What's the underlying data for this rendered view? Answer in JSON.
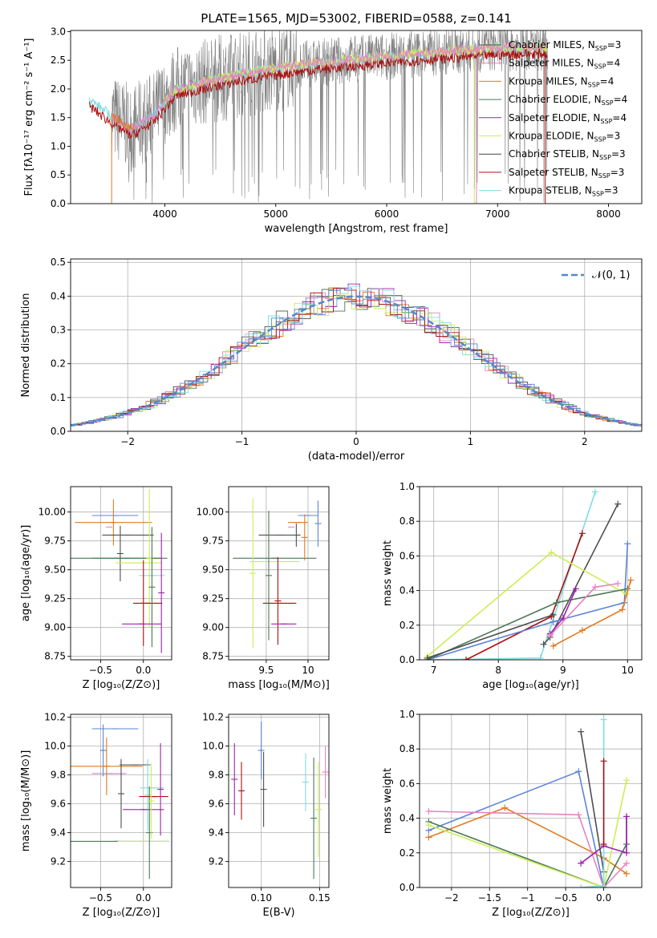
{
  "figure": {
    "title": "PLATE=1565, MJD=53002, FIBERID=0588, z=0.141"
  },
  "colors": {
    "miles_chabrier": "#4f4f4f",
    "miles_salpeter": "#e882c0",
    "miles_kroupa": "#e07b20",
    "elodie_chabrier": "#4a7a55",
    "elodie_salpeter": "#a020b0",
    "elodie_kroupa": "#ccee55",
    "stelib_chabrier": "#444444",
    "stelib_salpeter": "#aa1111",
    "stelib_kroupa": "#7fdde0",
    "blue_model": "#5b85d8",
    "data_gray": "#808080",
    "gauss": "#5588cc"
  },
  "chart_data": [
    {
      "id": "spectrum",
      "type": "line",
      "xlabel": "wavelength [Angstrom, rest frame]",
      "ylabel": "Flux [fλ10⁻¹⁷ erg cm⁻² s⁻¹ A⁻¹]",
      "xlim": [
        3150,
        8300
      ],
      "ylim": [
        0,
        3.02
      ],
      "xticks": [
        4000,
        5000,
        6000,
        7000,
        8000
      ],
      "yticks": [
        0.0,
        0.5,
        1.0,
        1.5,
        2.0,
        2.5,
        3.0
      ],
      "grid": false,
      "legend_position": "right",
      "legend": [
        {
          "label": "Chabrier MILES, N",
          "sub": "SSP",
          "tail": "=3",
          "color": "miles_chabrier"
        },
        {
          "label": "Salpeter MILES, N",
          "sub": "SSP",
          "tail": "=4",
          "color": "miles_salpeter"
        },
        {
          "label": "Kroupa MILES, N",
          "sub": "SSP",
          "tail": "=4",
          "color": "miles_kroupa"
        },
        {
          "label": "Chabrier ELODIE, N",
          "sub": "SSP",
          "tail": "=4",
          "color": "elodie_chabrier"
        },
        {
          "label": "Salpeter ELODIE, N",
          "sub": "SSP",
          "tail": "=4",
          "color": "elodie_salpeter"
        },
        {
          "label": "Kroupa ELODIE, N",
          "sub": "SSP",
          "tail": "=3",
          "color": "elodie_kroupa"
        },
        {
          "label": "Chabrier STELIB, N",
          "sub": "SSP",
          "tail": "=3",
          "color": "stelib_chabrier"
        },
        {
          "label": "Salpeter STELIB, N",
          "sub": "SSP",
          "tail": "=3",
          "color": "stelib_salpeter"
        },
        {
          "label": "Kroupa STELIB, N",
          "sub": "SSP",
          "tail": "=3",
          "color": "stelib_kroupa"
        }
      ],
      "continuum": {
        "x": [
          3300,
          3500,
          3700,
          3900,
          4100,
          4400,
          4800,
          5200,
          5600,
          6000,
          6500,
          7000,
          7500,
          8000
        ],
        "y": [
          1.85,
          1.55,
          1.3,
          1.55,
          2.0,
          2.15,
          2.3,
          2.42,
          2.5,
          2.57,
          2.65,
          2.72,
          2.74,
          2.68
        ]
      },
      "models": [
        {
          "color": "stelib_kroupa",
          "x_range": [
            3320,
            7450
          ]
        },
        {
          "color": "stelib_salpeter",
          "x_range": [
            3320,
            7450
          ]
        },
        {
          "color": "elodie_kroupa",
          "x_range": [
            4000,
            7450
          ]
        },
        {
          "color": "miles_salpeter",
          "x_range": [
            3520,
            7450
          ]
        },
        {
          "color": "miles_kroupa",
          "x_range": [
            3520,
            3720
          ]
        }
      ],
      "data_series": {
        "color": "data_gray",
        "x_range": [
          3520,
          7450
        ],
        "scatter": 0.35
      }
    },
    {
      "id": "residuals",
      "type": "line",
      "xlabel": "(data-model)/error",
      "ylabel": "Normed distribution",
      "xlim": [
        -2.5,
        2.5
      ],
      "ylim": [
        0,
        0.51
      ],
      "xticks": [
        -2,
        -1,
        0,
        1,
        2
      ],
      "yticks": [
        0.0,
        0.1,
        0.2,
        0.3,
        0.4,
        0.5
      ],
      "grid": true,
      "legend_position": "top-right",
      "gaussian_label": "𝒩(0, 1)",
      "bin_width": 0.1,
      "histograms": [
        {
          "color": "miles_chabrier"
        },
        {
          "color": "miles_salpeter"
        },
        {
          "color": "miles_kroupa"
        },
        {
          "color": "elodie_chabrier"
        },
        {
          "color": "elodie_salpeter"
        },
        {
          "color": "elodie_kroupa"
        },
        {
          "color": "stelib_salpeter"
        },
        {
          "color": "stelib_kroupa"
        },
        {
          "color": "blue_model"
        }
      ]
    },
    {
      "id": "age_vs_z",
      "type": "scatter",
      "xlabel": "Z [log₁₀(Z/Z⊙)]",
      "ylabel": "age  [log₁₀(age/yr)]",
      "xlim": [
        -0.85,
        0.33
      ],
      "ylim": [
        8.72,
        10.22
      ],
      "xticks": [
        -0.5,
        0.0
      ],
      "yticks": [
        8.75,
        9.0,
        9.25,
        9.5,
        9.75,
        10.0
      ],
      "grid": true,
      "points": [
        {
          "x": -0.33,
          "y": 9.97,
          "xerr": 0.27,
          "yerr": 0.0,
          "color": "blue_model"
        },
        {
          "x": -0.35,
          "y": 9.91,
          "xerr": 0.45,
          "yerr": 0.2,
          "color": "miles_kroupa"
        },
        {
          "x": -0.4,
          "y": 9.87,
          "xerr": 0.0,
          "yerr": 0.0,
          "color": "miles_salpeter"
        },
        {
          "x": -0.18,
          "y": 9.8,
          "xerr": 0.3,
          "yerr": 0.0,
          "color": "miles_chabrier"
        },
        {
          "x": -0.3,
          "y": 9.6,
          "xerr": 0.58,
          "yerr": 0.0,
          "color": "elodie_chabrier"
        },
        {
          "x": -0.27,
          "y": 9.64,
          "xerr": 0.0,
          "yerr": 0.24,
          "color": "miles_chabrier"
        },
        {
          "x": -0.2,
          "y": 9.6,
          "xerr": 0.4,
          "yerr": 0.0,
          "color": "elodie_chabrier"
        },
        {
          "x": -0.05,
          "y": 9.56,
          "xerr": 0.27,
          "yerr": 0.0,
          "color": "elodie_kroupa"
        },
        {
          "x": 0.07,
          "y": 9.6,
          "xerr": 0.0,
          "yerr": 0.6,
          "color": "elodie_kroupa"
        },
        {
          "x": 0.1,
          "y": 9.45,
          "xerr": 0.15,
          "yerr": 0.0,
          "color": "stelib_kroupa"
        },
        {
          "x": 0.05,
          "y": 9.21,
          "xerr": 0.17,
          "yerr": 0.0,
          "color": "stelib_salpeter"
        },
        {
          "x": 0.0,
          "y": 9.21,
          "xerr": 0.0,
          "yerr": 0.37,
          "color": "stelib_salpeter"
        },
        {
          "x": -0.02,
          "y": 9.03,
          "xerr": 0.23,
          "yerr": 0.0,
          "color": "elodie_salpeter"
        },
        {
          "x": 0.21,
          "y": 9.3,
          "xerr": 0.0,
          "yerr": 0.52,
          "color": "elodie_salpeter"
        },
        {
          "x": 0.1,
          "y": 9.35,
          "xerr": 0.0,
          "yerr": 0.52,
          "color": "elodie_chabrier"
        }
      ]
    },
    {
      "id": "age_vs_mass",
      "type": "scatter",
      "xlabel": "mass [log₁₀(M/M⊙)]",
      "ylabel": "",
      "xlim": [
        9.05,
        10.25
      ],
      "ylim": [
        8.72,
        10.22
      ],
      "xticks": [
        9.5,
        10.0
      ],
      "yticks": [
        8.75,
        9.0,
        9.25,
        9.5,
        9.75,
        10.0
      ],
      "grid": true,
      "points": [
        {
          "x": 10.0,
          "y": 9.97,
          "xerr": 0.12,
          "yerr": 0.0,
          "color": "blue_model"
        },
        {
          "x": 10.12,
          "y": 9.9,
          "xerr": 0.0,
          "yerr": 0.2,
          "color": "blue_model"
        },
        {
          "x": 9.88,
          "y": 9.91,
          "xerr": 0.12,
          "yerr": 0.0,
          "color": "miles_kroupa"
        },
        {
          "x": 9.8,
          "y": 9.87,
          "xerr": 0.0,
          "yerr": 0.0,
          "color": "miles_salpeter"
        },
        {
          "x": 9.66,
          "y": 9.8,
          "xerr": 0.25,
          "yerr": 0.0,
          "color": "miles_chabrier"
        },
        {
          "x": 9.86,
          "y": 9.8,
          "xerr": 0.0,
          "yerr": 0.1,
          "color": "miles_chabrier"
        },
        {
          "x": 9.6,
          "y": 9.6,
          "xerr": 0.5,
          "yerr": 0.0,
          "color": "elodie_chabrier"
        },
        {
          "x": 9.6,
          "y": 9.57,
          "xerr": 0.3,
          "yerr": 0.0,
          "color": "elodie_kroupa"
        },
        {
          "x": 9.34,
          "y": 9.47,
          "xerr": 0.0,
          "yerr": 0.65,
          "color": "elodie_kroupa"
        },
        {
          "x": 9.53,
          "y": 9.45,
          "xerr": 0.0,
          "yerr": 0.56,
          "color": "elodie_chabrier"
        },
        {
          "x": 9.66,
          "y": 9.21,
          "xerr": 0.2,
          "yerr": 0.0,
          "color": "stelib_salpeter"
        },
        {
          "x": 9.64,
          "y": 9.23,
          "xerr": 0.0,
          "yerr": 0.38,
          "color": "stelib_salpeter"
        },
        {
          "x": 9.71,
          "y": 9.03,
          "xerr": 0.15,
          "yerr": 0.0,
          "color": "elodie_salpeter"
        },
        {
          "x": 9.96,
          "y": 9.78,
          "xerr": 0.0,
          "yerr": 0.2,
          "color": "miles_kroupa"
        }
      ]
    },
    {
      "id": "weight_vs_age",
      "type": "line",
      "xlabel": "age  [log₁₀(age/yr)]",
      "ylabel": "mass weight",
      "xlim": [
        6.78,
        10.22
      ],
      "ylim": [
        0,
        1.0
      ],
      "xticks": [
        7,
        8,
        9,
        10
      ],
      "yticks": [
        0.0,
        0.2,
        0.4,
        0.6,
        0.8,
        1.0
      ],
      "grid": true,
      "series": [
        {
          "color": "stelib_kroupa",
          "x": [
            6.9,
            8.65,
            9.5
          ],
          "y": [
            0.0,
            0.01,
            0.97
          ]
        },
        {
          "color": "stelib_salpeter",
          "x": [
            7.5,
            8.82,
            9.3
          ],
          "y": [
            0.0,
            0.25,
            0.73
          ]
        },
        {
          "color": "miles_chabrier",
          "x": [
            8.7,
            8.8,
            9.85
          ],
          "y": [
            0.09,
            0.13,
            0.9
          ]
        },
        {
          "color": "blue_model",
          "x": [
            6.9,
            8.85,
            9.95,
            10.0
          ],
          "y": [
            0.0,
            0.22,
            0.33,
            0.67
          ]
        },
        {
          "color": "elodie_kroupa",
          "x": [
            6.9,
            8.82,
            9.98
          ],
          "y": [
            0.02,
            0.62,
            0.38
          ]
        },
        {
          "color": "elodie_chabrier",
          "x": [
            6.9,
            8.9,
            10.0
          ],
          "y": [
            0.0,
            0.33,
            0.41
          ]
        },
        {
          "color": "elodie_salpeter",
          "x": [
            8.8,
            9.0,
            9.2
          ],
          "y": [
            0.15,
            0.24,
            0.41
          ]
        },
        {
          "color": "miles_salpeter",
          "x": [
            8.8,
            9.5,
            9.85
          ],
          "y": [
            0.14,
            0.42,
            0.44
          ]
        },
        {
          "color": "miles_kroupa",
          "x": [
            8.85,
            9.3,
            9.92,
            10.05
          ],
          "y": [
            0.08,
            0.17,
            0.29,
            0.46
          ]
        },
        {
          "color": "miles_chabrier",
          "x": [
            6.9,
            8.85
          ],
          "y": [
            0.01,
            0.26
          ]
        }
      ]
    },
    {
      "id": "mass_vs_z",
      "type": "scatter",
      "xlabel": "Z [log₁₀(Z/Z⊙)]",
      "ylabel": "mass [log₁₀(M/M⊙)]",
      "xlim": [
        -0.85,
        0.33
      ],
      "ylim": [
        9.02,
        10.22
      ],
      "xticks": [
        -0.5,
        0.0
      ],
      "yticks": [
        9.2,
        9.4,
        9.6,
        9.8,
        10.0,
        10.2
      ],
      "grid": true,
      "points": [
        {
          "x": -0.33,
          "y": 10.12,
          "xerr": 0.27,
          "yerr": 0.0,
          "color": "blue_model"
        },
        {
          "x": -0.47,
          "y": 9.97,
          "xerr": 0.0,
          "yerr": 0.18,
          "color": "blue_model"
        },
        {
          "x": -0.43,
          "y": 9.86,
          "xerr": 0.42,
          "yerr": 0.2,
          "color": "miles_kroupa"
        },
        {
          "x": -0.4,
          "y": 9.81,
          "xerr": 0.2,
          "yerr": 0.0,
          "color": "miles_salpeter"
        },
        {
          "x": -0.1,
          "y": 9.87,
          "xerr": 0.18,
          "yerr": 0.0,
          "color": "miles_chabrier"
        },
        {
          "x": -0.26,
          "y": 9.67,
          "xerr": 0.0,
          "yerr": 0.24,
          "color": "miles_chabrier"
        },
        {
          "x": 0.1,
          "y": 9.71,
          "xerr": 0.14,
          "yerr": 0.0,
          "color": "stelib_kroupa"
        },
        {
          "x": 0.05,
          "y": 9.66,
          "xerr": 0.0,
          "yerr": 0.25,
          "color": "stelib_kroupa"
        },
        {
          "x": 0.12,
          "y": 9.65,
          "xerr": 0.17,
          "yerr": 0.0,
          "color": "stelib_salpeter"
        },
        {
          "x": 0.0,
          "y": 9.56,
          "xerr": 0.24,
          "yerr": 0.0,
          "color": "elodie_salpeter"
        },
        {
          "x": 0.2,
          "y": 9.7,
          "xerr": 0.0,
          "yerr": 0.32,
          "color": "elodie_salpeter"
        },
        {
          "x": -0.3,
          "y": 9.34,
          "xerr": 0.6,
          "yerr": 0.0,
          "color": "elodie_chabrier"
        },
        {
          "x": 0.0,
          "y": 9.34,
          "xerr": 0.3,
          "yerr": 0.0,
          "color": "elodie_kroupa"
        },
        {
          "x": 0.07,
          "y": 9.4,
          "xerr": 0.0,
          "yerr": 0.32,
          "color": "elodie_chabrier"
        },
        {
          "x": 0.09,
          "y": 9.62,
          "xerr": 0.0,
          "yerr": 0.26,
          "color": "elodie_kroupa"
        }
      ]
    },
    {
      "id": "mass_vs_ebv",
      "type": "scatter",
      "xlabel": "E(B-V)",
      "ylabel": "",
      "xlim": [
        0.072,
        0.158
      ],
      "ylim": [
        9.02,
        10.22
      ],
      "xticks": [
        0.1,
        0.15
      ],
      "xtick_labels": [
        "0.10",
        "0.15"
      ],
      "yticks": [
        9.2,
        9.4,
        9.6,
        9.8,
        10.0,
        10.2
      ],
      "grid": true,
      "points": [
        {
          "x": 0.077,
          "y": 9.77,
          "xerr": 0.0,
          "yerr": 0.25,
          "color": "elodie_salpeter"
        },
        {
          "x": 0.083,
          "y": 9.69,
          "xerr": 0.0,
          "yerr": 0.2,
          "color": "stelib_salpeter"
        },
        {
          "x": 0.1,
          "y": 9.97,
          "xerr": 0.0,
          "yerr": 0.2,
          "color": "blue_model"
        },
        {
          "x": 0.102,
          "y": 9.7,
          "xerr": 0.0,
          "yerr": 0.26,
          "color": "miles_chabrier"
        },
        {
          "x": 0.138,
          "y": 9.75,
          "xerr": 0.0,
          "yerr": 0.2,
          "color": "stelib_kroupa"
        },
        {
          "x": 0.145,
          "y": 9.5,
          "xerr": 0.0,
          "yerr": 0.42,
          "color": "elodie_chabrier"
        },
        {
          "x": 0.149,
          "y": 9.56,
          "xerr": 0.0,
          "yerr": 0.33,
          "color": "elodie_kroupa"
        },
        {
          "x": 0.155,
          "y": 9.82,
          "xerr": 0.0,
          "yerr": 0.18,
          "color": "miles_salpeter"
        }
      ]
    },
    {
      "id": "weight_vs_z",
      "type": "line",
      "xlabel": "Z [log₁₀(Z/Z⊙)]",
      "ylabel": "mass weight",
      "xlim": [
        -2.42,
        0.5
      ],
      "ylim": [
        0,
        1.0
      ],
      "xticks": [
        -2.0,
        -1.5,
        -1.0,
        -0.5,
        0.0
      ],
      "yticks": [
        0.0,
        0.2,
        0.4,
        0.6,
        0.8,
        1.0
      ],
      "grid": true,
      "series": [
        {
          "color": "blue_model",
          "x": [
            -2.3,
            -0.33,
            0.0
          ],
          "y": [
            0.33,
            0.67,
            0.0
          ]
        },
        {
          "color": "miles_kroupa",
          "x": [
            -2.3,
            -1.3,
            0.0,
            0.3
          ],
          "y": [
            0.29,
            0.46,
            0.17,
            0.08
          ]
        },
        {
          "color": "miles_salpeter",
          "x": [
            -2.3,
            -0.33,
            0.0,
            0.3
          ],
          "y": [
            0.44,
            0.42,
            0.0,
            0.14
          ]
        },
        {
          "color": "elodie_chabrier",
          "x": [
            -2.3,
            0.0,
            0.3,
            0.3
          ],
          "y": [
            0.38,
            0.0,
            0.25,
            0.41
          ]
        },
        {
          "color": "elodie_kroupa",
          "x": [
            -2.3,
            0.0,
            0.3
          ],
          "y": [
            0.36,
            0.0,
            0.62
          ]
        },
        {
          "color": "elodie_salpeter",
          "x": [
            -0.3,
            0.0,
            0.3,
            0.3
          ],
          "y": [
            0.14,
            0.24,
            0.2,
            0.41
          ]
        },
        {
          "color": "miles_chabrier",
          "x": [
            -0.3,
            0.0
          ],
          "y": [
            0.9,
            0.09
          ]
        },
        {
          "color": "stelib_kroupa",
          "x": [
            -0.3,
            0.0,
            0.0
          ],
          "y": [
            0.0,
            0.01,
            0.97
          ]
        },
        {
          "color": "stelib_salpeter",
          "x": [
            0.0,
            0.0
          ],
          "y": [
            0.25,
            0.73
          ]
        }
      ]
    }
  ]
}
